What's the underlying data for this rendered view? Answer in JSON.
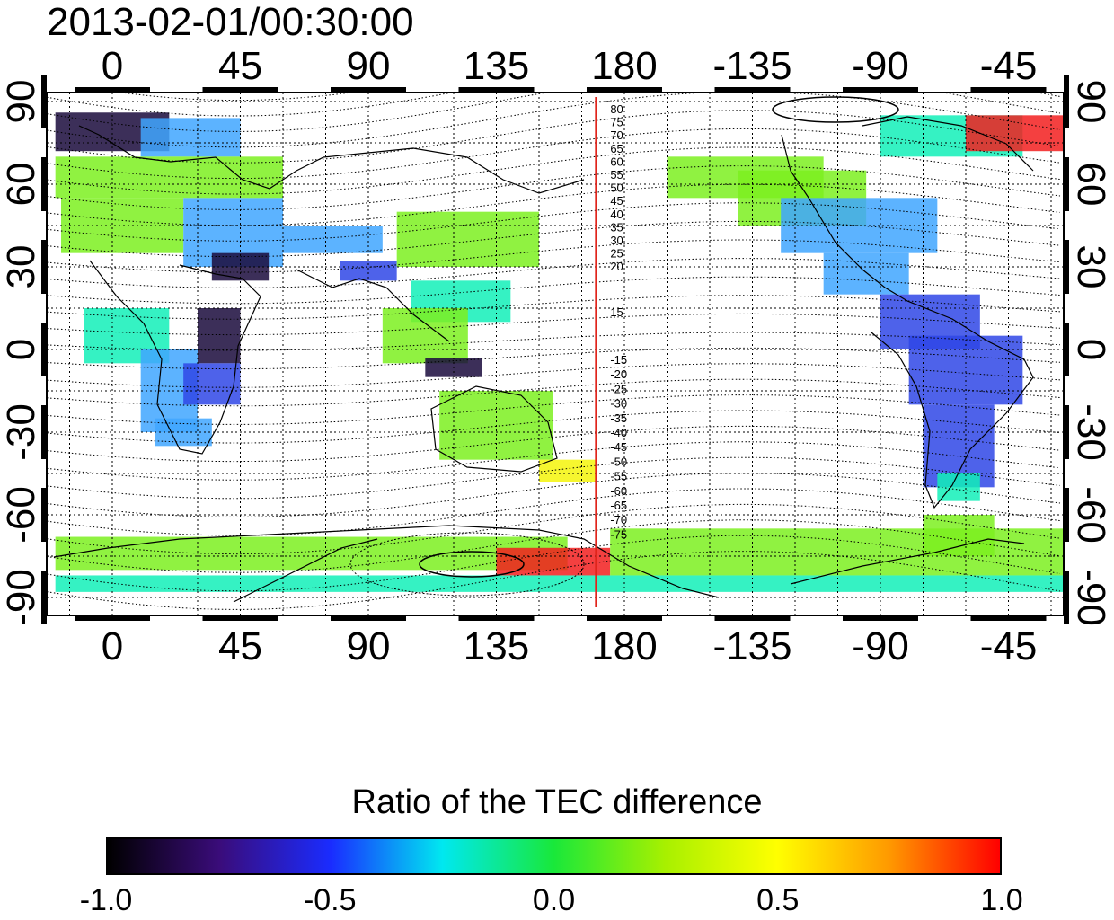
{
  "title": "2013-02-01/00:30:00",
  "map": {
    "top_lon_ticks": [
      "0",
      "45",
      "90",
      "135",
      "180",
      "-135",
      "-90",
      "-45"
    ],
    "bottom_lon_ticks": [
      "0",
      "45",
      "90",
      "135",
      "180",
      "-135",
      "-90",
      "-45"
    ],
    "left_lat_ticks": [
      "90",
      "60",
      "30",
      "0",
      "-30",
      "-60",
      "-90"
    ],
    "right_lat_ticks": [
      "90",
      "60",
      "30",
      "0",
      "-30",
      "-60",
      "-90"
    ],
    "contour_labels_north": [
      "80",
      "75",
      "70",
      "65",
      "60",
      "55",
      "50",
      "45",
      "40",
      "35",
      "30",
      "25",
      "20",
      "15"
    ],
    "contour_labels_south": [
      "-15",
      "-20",
      "-25",
      "-30",
      "-35",
      "-40",
      "-45",
      "-50",
      "-55",
      "-60",
      "-65",
      "-70",
      "-75"
    ],
    "meridian_marker_lon": 170,
    "meridian_marker_color": "#e0241b",
    "colors": {
      "strong_negative": "#1a0a3c",
      "negative": "#2f46e6",
      "mild_negative": "#3fa6ff",
      "neutral": "#12f0b8",
      "positive": "#7cf020",
      "mild_positive": "#f4f40a",
      "strong_positive": "#f21e1e"
    }
  },
  "colorbar": {
    "title": "Ratio of the TEC difference",
    "min": -1.0,
    "max": 1.0,
    "ticks": [
      "-1.0",
      "-0.5",
      "0.0",
      "0.5",
      "1.0"
    ],
    "stops": [
      "#000000",
      "#3a0c7a",
      "#1a2cff",
      "#00e8f0",
      "#19e83a",
      "#a8f000",
      "#ffff00",
      "#ff9a00",
      "#ff0000"
    ]
  }
}
